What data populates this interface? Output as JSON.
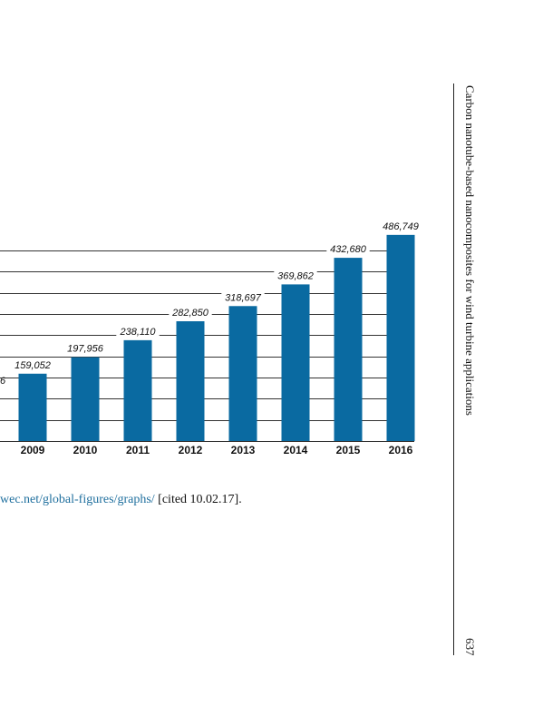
{
  "chart_data": {
    "type": "bar",
    "categories": [
      "2009",
      "2010",
      "2011",
      "2012",
      "2013",
      "2014",
      "2015",
      "2016"
    ],
    "values": [
      159052,
      197956,
      238110,
      282850,
      318697,
      369862,
      432680,
      486749
    ],
    "value_labels": [
      "159,052",
      "197,956",
      "238,110",
      "282,850",
      "318,697",
      "369,862",
      "432,680",
      "486,749"
    ],
    "partial_left_label": "6",
    "bar_color": "#0a6aa1",
    "grid": true,
    "ylim": [
      0,
      500000
    ],
    "title": "",
    "xlabel": "",
    "ylabel": ""
  },
  "caption": {
    "link_text": "wec.net/global-figures/graphs/",
    "rest_text": " [cited 10.02.17]."
  },
  "running_head": "Carbon nanotube-based nanocomposites for wind turbine applications",
  "page_number": "637",
  "colors": {
    "bar": "#0a6aa1",
    "link": "#1f6f9e",
    "grid": "#333333"
  }
}
